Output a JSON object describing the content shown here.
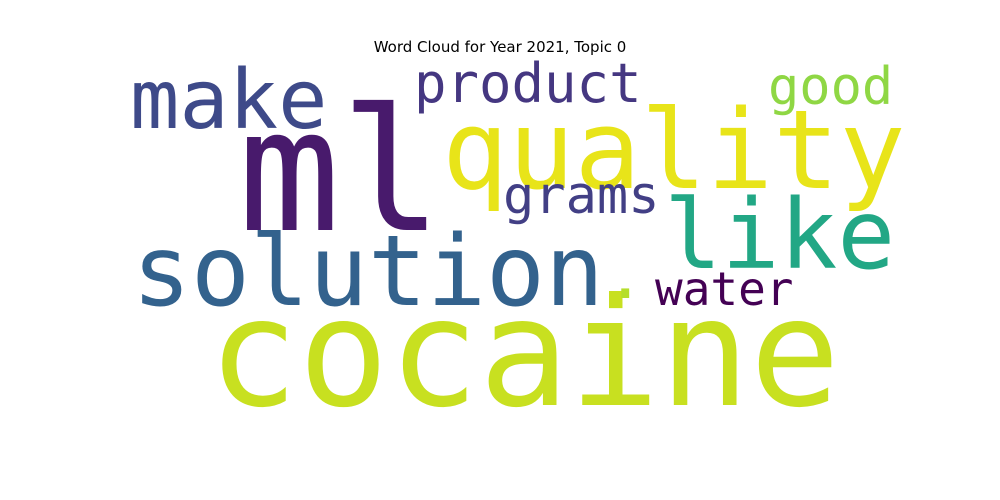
{
  "chart_data": {
    "type": "wordcloud",
    "title": "Word Cloud for Year 2021, Topic 0",
    "words": [
      {
        "text": "ml",
        "color": "#481a6c"
      },
      {
        "text": "cocaine",
        "color": "#c8e020"
      },
      {
        "text": "solution",
        "color": "#33628d"
      },
      {
        "text": "quality",
        "color": "#e8e419"
      },
      {
        "text": "make",
        "color": "#3e4a89"
      },
      {
        "text": "like",
        "color": "#22a785"
      },
      {
        "text": "product",
        "color": "#453781"
      },
      {
        "text": "good",
        "color": "#8fd744"
      },
      {
        "text": "grams",
        "color": "#423f85"
      },
      {
        "text": "water",
        "color": "#440154"
      },
      {
        "text": ".",
        "color": "#b5de2b"
      }
    ]
  }
}
